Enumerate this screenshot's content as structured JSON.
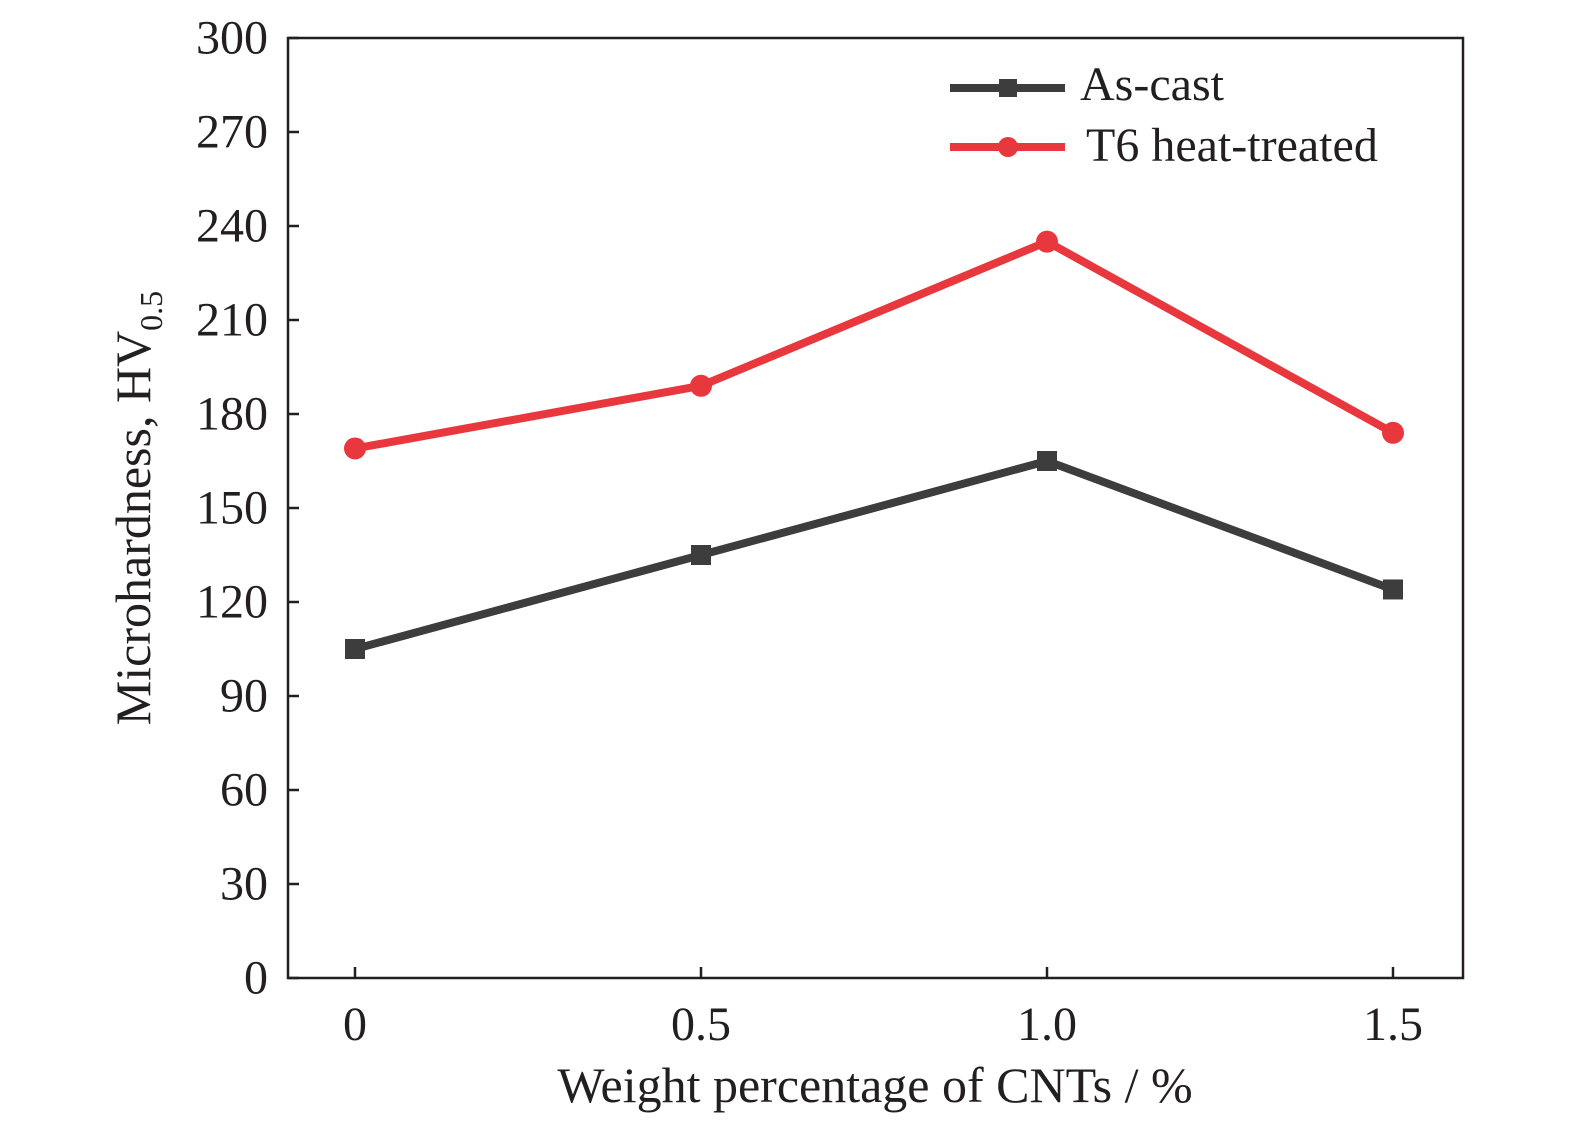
{
  "chart_data": {
    "type": "line",
    "x": [
      "0",
      "0.5",
      "1.0",
      "1.5"
    ],
    "x_values": [
      0,
      0.5,
      1.0,
      1.5
    ],
    "xlabel": "Weight percentage of CNTs / %",
    "ylabel": "Microhardness, HV",
    "ylabel_subscript": "0.5",
    "ylim": [
      0,
      300
    ],
    "yticks": [
      0,
      30,
      60,
      90,
      120,
      150,
      180,
      210,
      240,
      270,
      300
    ],
    "grid": false,
    "legend_position": "top-right",
    "series": [
      {
        "name": "As-cast",
        "color": "#3d3d3d",
        "marker": "square",
        "values": [
          105,
          135,
          165,
          124
        ]
      },
      {
        "name": "T6 heat-treated",
        "color": "#e8373d",
        "marker": "circle",
        "values": [
          169,
          189,
          235,
          174
        ]
      }
    ]
  }
}
